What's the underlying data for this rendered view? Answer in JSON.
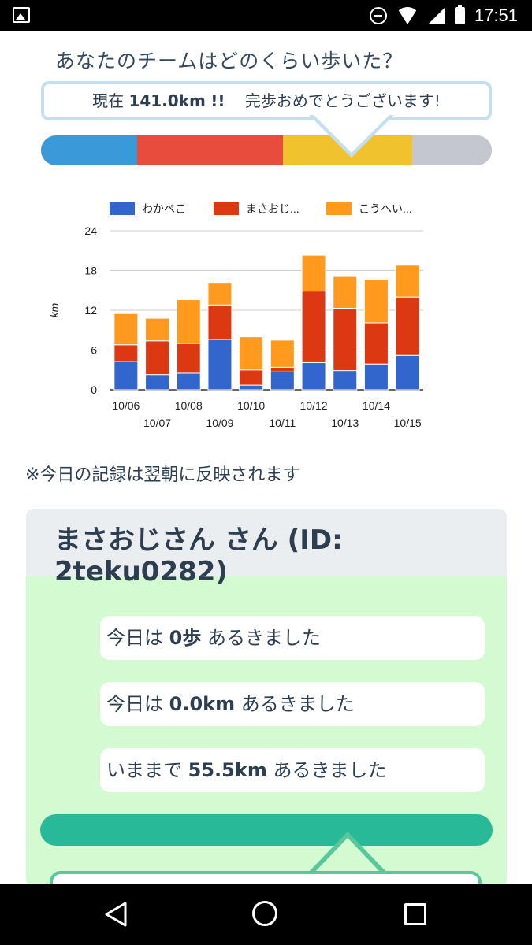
{
  "status_bar": {
    "time": "17:51",
    "icons": [
      "image-icon",
      "dnd-icon",
      "wifi-icon",
      "signal-icon",
      "battery-icon"
    ]
  },
  "team": {
    "title": "あなたのチームはどのくらい歩いた？",
    "bubble_prefix": "現在",
    "bubble_distance": "141.0km",
    "bubble_exclaim": "!!",
    "bubble_message": "完歩おめでとうございます!",
    "progress": [
      {
        "value": 0.214,
        "color": "#3a9ad9"
      },
      {
        "value": 0.323,
        "color": "#e74c3c"
      },
      {
        "value": 0.287,
        "color": "#f0c22e"
      },
      {
        "value": 0.176,
        "color": "#c4c7cf"
      }
    ]
  },
  "chart_data": {
    "type": "bar",
    "stacked": true,
    "categories": [
      "10/06",
      "10/07",
      "10/08",
      "10/09",
      "10/10",
      "10/11",
      "10/12",
      "10/13",
      "10/14",
      "10/15"
    ],
    "series": [
      {
        "name": "わかぺこ",
        "color": "#3366cc",
        "values": [
          4.3,
          2.3,
          2.5,
          7.6,
          0.7,
          2.7,
          4.1,
          2.9,
          3.9,
          5.2
        ]
      },
      {
        "name": "まさおじ...",
        "color": "#dc3912",
        "values": [
          2.5,
          5.1,
          4.5,
          5.2,
          2.3,
          0.7,
          10.8,
          9.4,
          6.2,
          8.8
        ]
      },
      {
        "name": "こうへい...",
        "color": "#ff9a1f",
        "values": [
          4.7,
          3.4,
          6.6,
          3.4,
          5.0,
          4.1,
          5.4,
          4.8,
          6.6,
          4.8
        ]
      }
    ],
    "ylabel": "km",
    "ylim": [
      0,
      24
    ],
    "yticks": [
      "0",
      "6",
      "12",
      "18",
      "24"
    ],
    "grid": true,
    "legend": "top"
  },
  "note": "※今日の記録は翌朝に反映されます",
  "user_card": {
    "title": "まさおじさん さん (ID: 2teku0282)",
    "stat_today_steps": {
      "prefix": "今日は ",
      "value": "0歩",
      "suffix": " あるきました"
    },
    "stat_today_km": {
      "prefix": "今日は ",
      "value": "0.0km",
      "suffix": " あるきました"
    },
    "stat_total_km": {
      "prefix": "いままで ",
      "value": "55.5km",
      "suffix": " あるきました"
    }
  }
}
